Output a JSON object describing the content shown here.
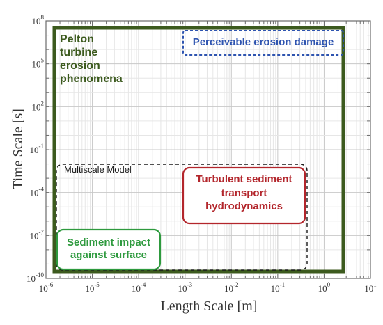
{
  "chart_data": {
    "type": "diagram",
    "xlabel": "Length Scale [m]",
    "ylabel": "Time Scale [s]",
    "x_scale": "log",
    "y_scale": "log",
    "xlim_exp": [
      -6,
      1
    ],
    "ylim_exp": [
      -10,
      8
    ],
    "grid": true,
    "x_ticks": [
      {
        "base": "10",
        "exp": "-6"
      },
      {
        "base": "10",
        "exp": "-5"
      },
      {
        "base": "10",
        "exp": "-4"
      },
      {
        "base": "10",
        "exp": "-3"
      },
      {
        "base": "10",
        "exp": "-2"
      },
      {
        "base": "10",
        "exp": "-1"
      },
      {
        "base": "10",
        "exp": "0"
      },
      {
        "base": "10",
        "exp": "1"
      }
    ],
    "y_ticks": [
      {
        "base": "10",
        "exp": "8"
      },
      {
        "base": "10",
        "exp": "5"
      },
      {
        "base": "10",
        "exp": "2"
      },
      {
        "base": "10",
        "exp": "-1"
      },
      {
        "base": "10",
        "exp": "-4"
      },
      {
        "base": "10",
        "exp": "-7"
      },
      {
        "base": "10",
        "exp": "-10"
      }
    ],
    "regions": [
      {
        "id": "pelton",
        "label": "Pelton turbine erosion phenomena",
        "color": "#3c5a1e",
        "style": "solid"
      },
      {
        "id": "erosion",
        "label": "Perceivable erosion damage",
        "color": "#2e54b0",
        "style": "dashed"
      },
      {
        "id": "multiscale",
        "label": "Multiscale Model",
        "color": "#1a1a1a",
        "style": "dashed"
      },
      {
        "id": "turbulent",
        "label": "Turbulent sediment transport hydrodynamics",
        "color": "#b3262c",
        "style": "solid"
      },
      {
        "id": "impact",
        "label": "Sediment impact against surface",
        "color": "#2e9a3e",
        "style": "solid"
      }
    ]
  },
  "labels": {
    "pelton": [
      "Pelton",
      "turbine",
      "erosion",
      "phenomena"
    ],
    "erosion": "Perceivable erosion damage",
    "multiscale": "Multiscale Model",
    "turbulent": [
      "Turbulent sediment",
      "transport",
      "hydrodynamics"
    ],
    "impact": [
      "Sediment impact",
      "against surface"
    ]
  }
}
